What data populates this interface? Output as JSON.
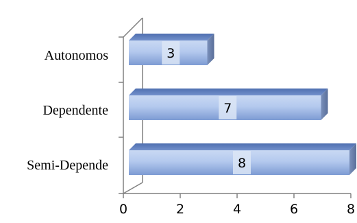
{
  "chart_data": {
    "type": "bar",
    "orientation": "horizontal",
    "style": "3d",
    "title": "",
    "xlabel": "",
    "ylabel": "",
    "categories": [
      "Autonomos",
      "Dependente",
      "Semi-Depende"
    ],
    "values": [
      3,
      7,
      8
    ],
    "data_labels": [
      "3",
      "7",
      "8"
    ],
    "xlim": [
      0,
      8
    ],
    "x_ticks": [
      "0",
      "2",
      "4",
      "6",
      "8"
    ],
    "grid": false,
    "legend": "none",
    "colors": {
      "bar_front_top": "#c9d9f3",
      "bar_front_mid": "#a7c0ea",
      "bar_front_bottom": "#7d9bd3",
      "bar_top": "#5b7bbd",
      "bar_side": "#6f87b3",
      "axis": "#808080",
      "label_box": "#dce6f6"
    }
  }
}
